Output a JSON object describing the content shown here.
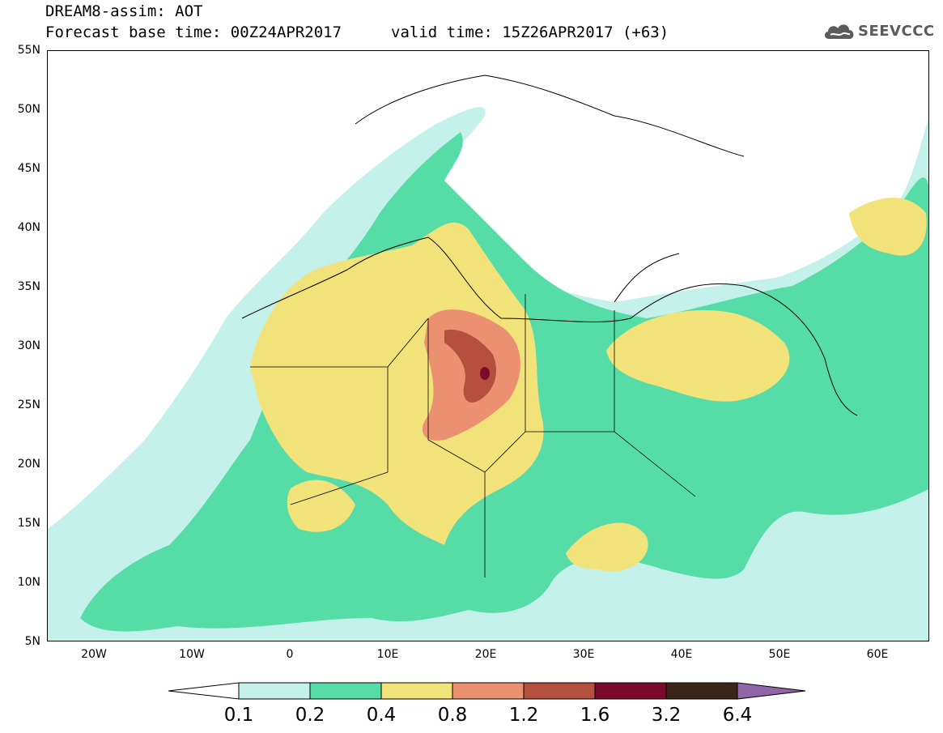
{
  "header": {
    "model_title": "DREAM8-assim: AOT",
    "base_time": "Forecast base time: 00Z24APR2017",
    "valid_time": "valid time: 15Z26APR2017 (+63)"
  },
  "logo": {
    "text": "SEEVCCC",
    "icon": "cloud-logo-icon"
  },
  "map": {
    "lat_labels": [
      "55N",
      "50N",
      "45N",
      "40N",
      "35N",
      "30N",
      "25N",
      "20N",
      "15N",
      "10N",
      "5N"
    ],
    "lon_labels": [
      "20W",
      "10W",
      "0",
      "10E",
      "20E",
      "30E",
      "40E",
      "50E",
      "60E"
    ],
    "lat_range": [
      5,
      55
    ],
    "lon_range": [
      -25,
      65
    ],
    "field": "aerosol optical thickness (AOT)"
  },
  "legend": {
    "labels": [
      "0.1",
      "0.2",
      "0.4",
      "0.8",
      "1.2",
      "1.6",
      "3.2",
      "6.4"
    ],
    "colors": [
      "#ffffff",
      "#c4f1ea",
      "#55dca7",
      "#f2e27a",
      "#eb9070",
      "#b54f3e",
      "#7b0a2c",
      "#3a2518",
      "#9166a8"
    ]
  }
}
